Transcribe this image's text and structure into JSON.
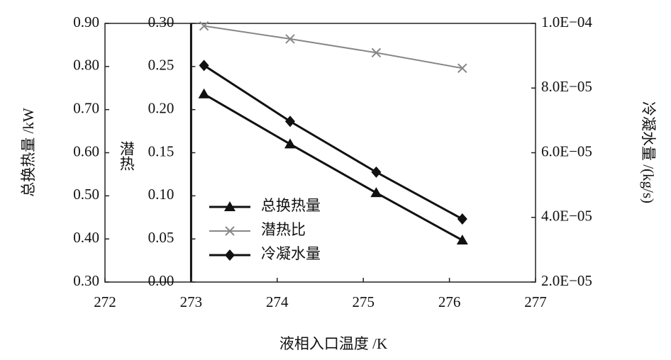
{
  "chart_data": {
    "type": "line",
    "x_label": "液相入口温度 /K",
    "y_label": "总换热量 /kW",
    "y2_label": "冷凝水量 /(kg/s)",
    "y3_label": "潜热",
    "x": [
      273.15,
      274.15,
      275.15,
      276.15
    ],
    "xlim": [
      272,
      277
    ],
    "xticks": [
      272,
      273,
      274,
      275,
      276,
      277
    ],
    "ylim": [
      0.3,
      0.9
    ],
    "yticks": [
      {
        "value": 0.3,
        "label": "0.30"
      },
      {
        "value": 0.4,
        "label": "0.40"
      },
      {
        "value": 0.5,
        "label": "0.50"
      },
      {
        "value": 0.6,
        "label": "0.60"
      },
      {
        "value": 0.7,
        "label": "0.70"
      },
      {
        "value": 0.8,
        "label": "0.80"
      },
      {
        "value": 0.9,
        "label": "0.90"
      }
    ],
    "y3lim": [
      0,
      0.3
    ],
    "y3ticks": [
      {
        "value": 0,
        "label": "0.00"
      },
      {
        "value": 0.05,
        "label": "0.05"
      },
      {
        "value": 0.1,
        "label": "0.10"
      },
      {
        "value": 0.15,
        "label": "0.15"
      },
      {
        "value": 0.2,
        "label": "0.20"
      },
      {
        "value": 0.25,
        "label": "0.25"
      },
      {
        "value": 0.3,
        "label": "0.30"
      }
    ],
    "y2lim": [
      2e-05,
      0.0001
    ],
    "y2ticks": [
      {
        "value": 2e-05,
        "label": "2.0E−05"
      },
      {
        "value": 4e-05,
        "label": "4.0E−05"
      },
      {
        "value": 6e-05,
        "label": "6.0E−05"
      },
      {
        "value": 8e-05,
        "label": "8.0E−05"
      },
      {
        "value": 0.0001,
        "label": "1.0E−04"
      }
    ],
    "series": [
      {
        "name": "总换热量",
        "color": "#111111",
        "marker": "triangle",
        "axis": "y",
        "values": [
          0.736,
          0.62,
          0.507,
          0.397
        ]
      },
      {
        "name": "潜热比",
        "color": "#888888",
        "marker": "x",
        "axis": "y3",
        "values": [
          0.297,
          0.282,
          0.266,
          0.248
        ]
      },
      {
        "name": "冷凝水量",
        "color": "#111111",
        "marker": "diamond",
        "axis": "y2",
        "values": [
          8.7e-05,
          6.97e-05,
          5.4e-05,
          3.95e-05
        ]
      }
    ],
    "legend": "lower-left"
  }
}
